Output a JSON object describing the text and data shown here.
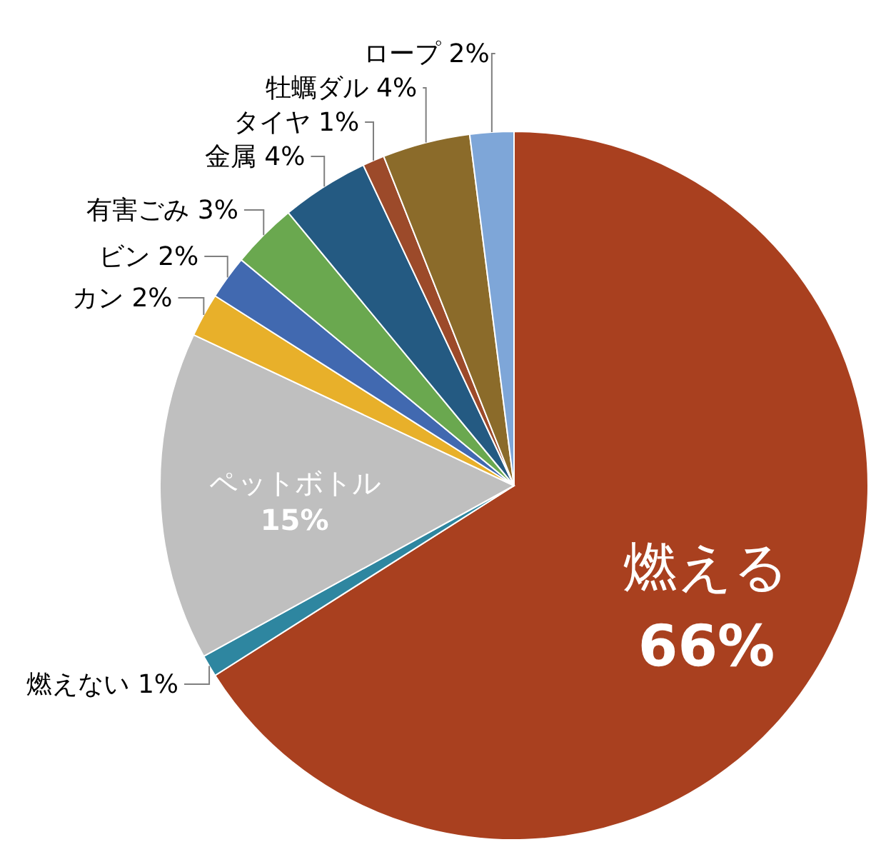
{
  "chart_data": {
    "type": "pie",
    "categories": [
      "燃える",
      "燃えない",
      "ペットボトル",
      "カン",
      "ビン",
      "有害ごみ",
      "金属",
      "タイヤ",
      "牡蠣ダル",
      "ロープ"
    ],
    "values": [
      66,
      1,
      15,
      2,
      2,
      3,
      4,
      1,
      4,
      2
    ],
    "value_labels": [
      "66%",
      "1%",
      "15%",
      "2%",
      "2%",
      "3%",
      "4%",
      "1%",
      "4%",
      "2%"
    ],
    "colors": [
      "#a9401f",
      "#2e86a0",
      "#bfbfbf",
      "#e8b02a",
      "#4169b0",
      "#6aa84f",
      "#245a82",
      "#9c4a2a",
      "#8b6b2a",
      "#7ea6d8"
    ]
  }
}
